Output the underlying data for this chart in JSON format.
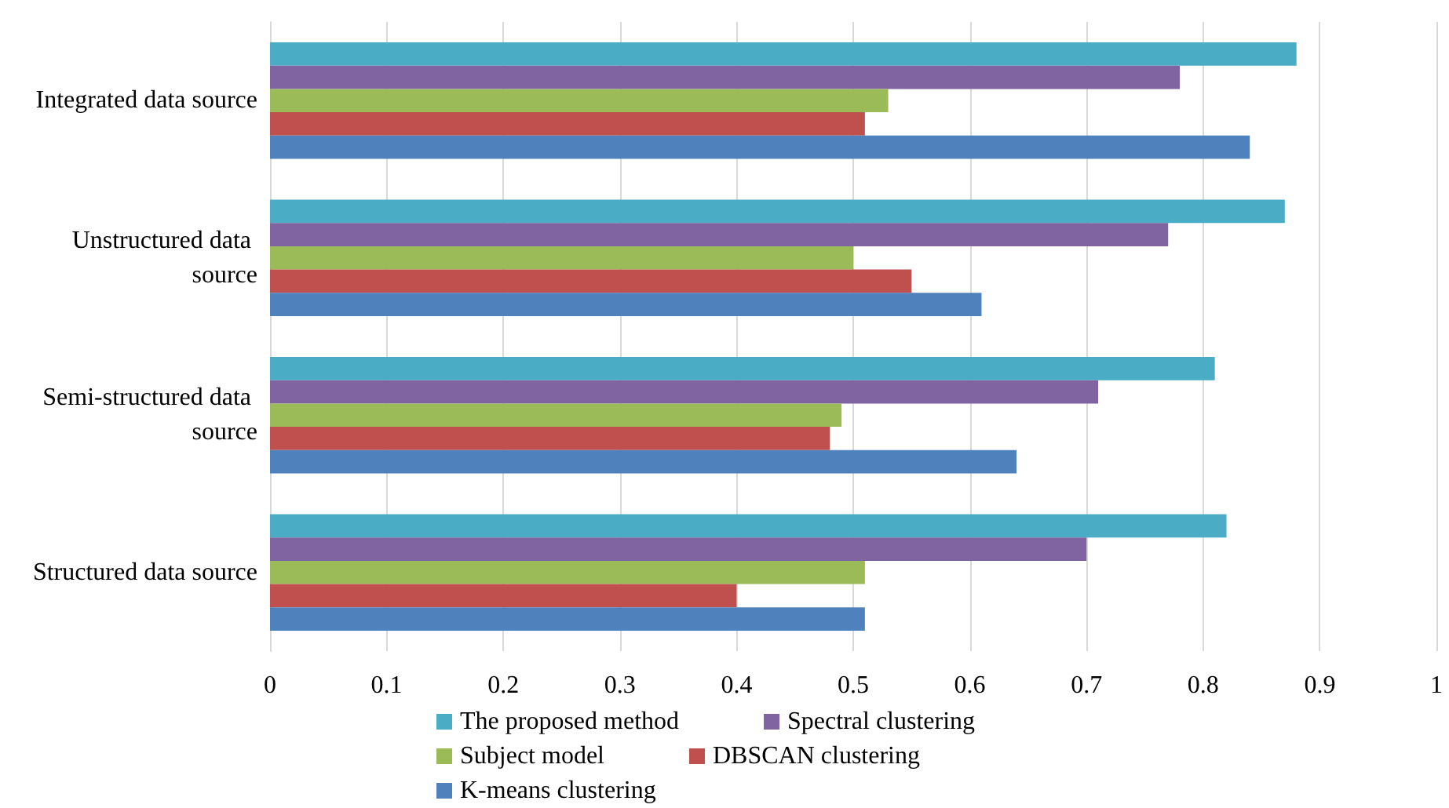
{
  "chart_data": {
    "type": "bar",
    "orientation": "horizontal",
    "categories": [
      "Integrated data source",
      "Unstructured data source",
      "Semi-structured data source",
      "Structured data source"
    ],
    "series": [
      {
        "name": "The proposed method",
        "color": "#4bacc6",
        "values": [
          0.88,
          0.87,
          0.81,
          0.82
        ]
      },
      {
        "name": "Spectral clustering",
        "color": "#8064a2",
        "values": [
          0.78,
          0.77,
          0.71,
          0.7
        ]
      },
      {
        "name": "Subject model",
        "color": "#9bbb59",
        "values": [
          0.53,
          0.5,
          0.49,
          0.51
        ]
      },
      {
        "name": "DBSCAN clustering",
        "color": "#c0504d",
        "values": [
          0.51,
          0.55,
          0.48,
          0.4
        ]
      },
      {
        "name": "K-means clustering",
        "color": "#4f81bd",
        "values": [
          0.84,
          0.61,
          0.64,
          0.51
        ]
      }
    ],
    "xlim": [
      0,
      1
    ],
    "xticks": [
      0,
      0.1,
      0.2,
      0.3,
      0.4,
      0.5,
      0.6,
      0.7,
      0.8,
      0.9,
      1
    ],
    "grid": "x",
    "legend": "bottom"
  }
}
